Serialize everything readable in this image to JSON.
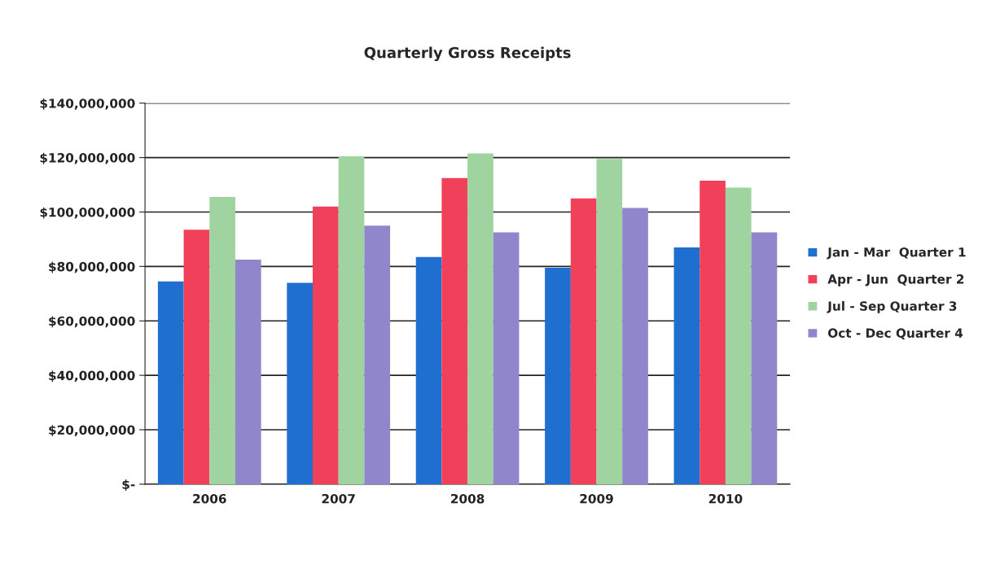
{
  "chart_data": {
    "type": "bar",
    "title": "Quarterly Gross Receipts",
    "categories": [
      "2006",
      "2007",
      "2008",
      "2009",
      "2010"
    ],
    "series": [
      {
        "name": "Jan - Mar  Quarter 1",
        "color": "#1f6fd0",
        "values": [
          74500000,
          74000000,
          83500000,
          79500000,
          87000000
        ]
      },
      {
        "name": "Apr - Jun  Quarter 2",
        "color": "#f0405a",
        "values": [
          93500000,
          102000000,
          112500000,
          105000000,
          111500000
        ]
      },
      {
        "name": "Jul - Sep Quarter 3",
        "color": "#9fd4a0",
        "values": [
          105500000,
          120500000,
          121500000,
          119500000,
          109000000
        ]
      },
      {
        "name": "Oct - Dec Quarter 4",
        "color": "#8f86cc",
        "values": [
          82500000,
          95000000,
          92500000,
          101500000,
          92500000
        ]
      }
    ],
    "ylim": [
      0,
      140000000
    ],
    "yticks": [
      {
        "value": 0,
        "label": "$-"
      },
      {
        "value": 20000000,
        "label": "$20,000,000"
      },
      {
        "value": 40000000,
        "label": "$40,000,000"
      },
      {
        "value": 60000000,
        "label": "$60,000,000"
      },
      {
        "value": 80000000,
        "label": "$80,000,000"
      },
      {
        "value": 100000000,
        "label": "$100,000,000"
      },
      {
        "value": 120000000,
        "label": "$120,000,000"
      },
      {
        "value": 140000000,
        "label": "$140,000,000"
      }
    ],
    "grid": "y",
    "legend": "right"
  }
}
